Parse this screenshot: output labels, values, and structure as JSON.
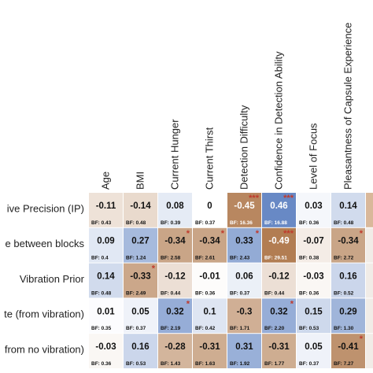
{
  "chart_data": {
    "type": "heatmap",
    "columns": [
      "Age",
      "BMI",
      "Current Hunger",
      "Current Thirst",
      "Detection Difficulty",
      "Confidence in Detection Ability",
      "Level of Focus",
      "Pleasantness of Capsule Experience"
    ],
    "rows": [
      "ive Precision (IP)",
      "e between blocks",
      "Vibration Prior",
      "te (from vibration)",
      "from no vibration)"
    ],
    "values": [
      [
        -0.11,
        -0.14,
        0.08,
        0,
        -0.45,
        0.46,
        0.03,
        0.14
      ],
      [
        0.09,
        0.27,
        -0.34,
        -0.34,
        0.33,
        -0.49,
        -0.07,
        -0.34
      ],
      [
        0.14,
        -0.33,
        -0.12,
        -0.01,
        0.06,
        -0.12,
        -0.03,
        0.16
      ],
      [
        0.01,
        0.05,
        0.32,
        0.1,
        -0.3,
        0.32,
        0.15,
        0.29
      ],
      [
        -0.03,
        0.16,
        -0.28,
        -0.31,
        0.31,
        -0.31,
        0.05,
        -0.41
      ]
    ],
    "value_labels": [
      [
        "-0.11",
        "-0.14",
        "0.08",
        "0",
        "-0.45",
        "0.46",
        "0.03",
        "0.14"
      ],
      [
        "0.09",
        "0.27",
        "-0.34",
        "-0.34",
        "0.33",
        "-0.49",
        "-0.07",
        "-0.34"
      ],
      [
        "0.14",
        "-0.33",
        "-0.12",
        "-0.01",
        "0.06",
        "-0.12",
        "-0.03",
        "0.16"
      ],
      [
        "0.01",
        "0.05",
        "0.32",
        "0.1",
        "-0.3",
        "0.32",
        "0.15",
        "0.29"
      ],
      [
        "-0.03",
        "0.16",
        "-0.28",
        "-0.31",
        "0.31",
        "-0.31",
        "0.05",
        "-0.41"
      ]
    ],
    "bayes_factors": [
      [
        "BF: 0.43",
        "BF: 0.48",
        "BF: 0.39",
        "BF: 0.37",
        "BF: 16.36",
        "BF: 16.88",
        "BF: 0.36",
        "BF: 0.48"
      ],
      [
        "BF: 0.4",
        "BF: 1.24",
        "BF: 2.58",
        "BF: 2.61",
        "BF: 2.43",
        "BF: 29.51",
        "BF: 0.38",
        "BF: 2.72"
      ],
      [
        "BF: 0.48",
        "BF: 2.49",
        "BF: 0.44",
        "BF: 0.36",
        "BF: 0.37",
        "BF: 0.44",
        "BF: 0.36",
        "BF: 0.52"
      ],
      [
        "BF: 0.35",
        "BF: 0.37",
        "BF: 2.19",
        "BF: 0.42",
        "BF: 1.71",
        "BF: 2.20",
        "BF: 0.53",
        "BF: 1.30"
      ],
      [
        "BF: 0.36",
        "BF: 0.53",
        "BF: 1.43",
        "BF: 1.63",
        "BF: 1.92",
        "BF: 1.77",
        "BF: 0.37",
        "BF: 7.27"
      ]
    ],
    "significance": [
      [
        "",
        "",
        "",
        "",
        "***",
        "***",
        "",
        ""
      ],
      [
        "",
        "",
        "*",
        "*",
        "*",
        "***",
        "",
        "*"
      ],
      [
        "",
        "*",
        "",
        "",
        "",
        "",
        "",
        ""
      ],
      [
        "",
        "",
        "*",
        "",
        "",
        "*",
        "",
        ""
      ],
      [
        "",
        "",
        "",
        "",
        "",
        "",
        "",
        "*"
      ]
    ],
    "color_scale": {
      "negative": "#b07a4e",
      "positive": "#5b7fc0",
      "zero": "#ffffff",
      "max_abs": 0.5,
      "significance_color": "#c0392b"
    },
    "grid": true,
    "legend": "none"
  }
}
